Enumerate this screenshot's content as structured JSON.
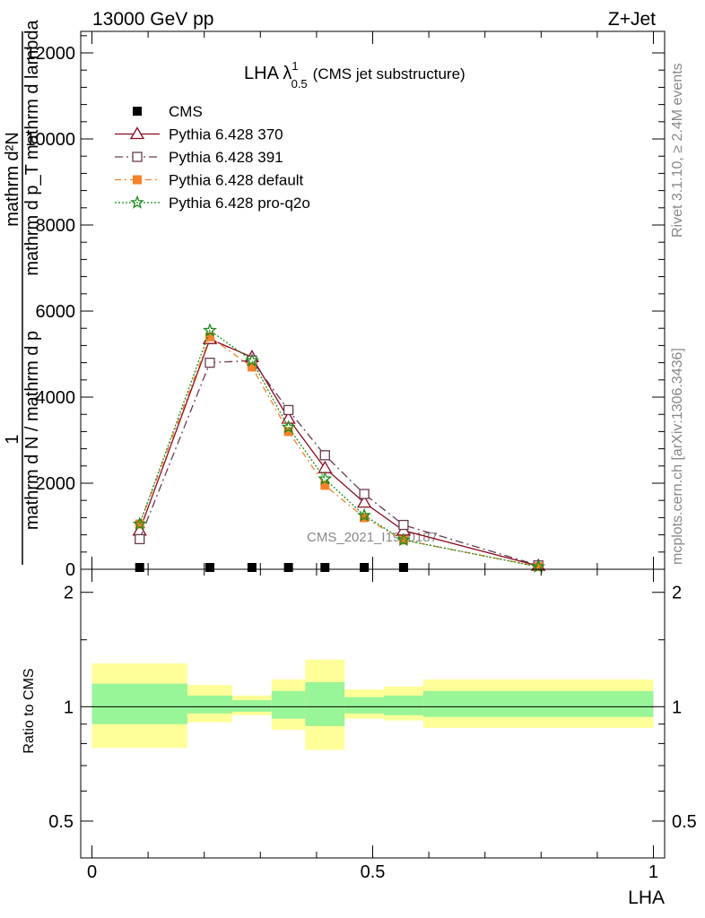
{
  "header": {
    "left": "13000 GeV pp",
    "right": "Z+Jet"
  },
  "side_labels": {
    "rivet": "Rivet 3.1.10, ≥ 2.4M events",
    "mcplots": "mcplots.cern.ch [arXiv:1306.3436]"
  },
  "watermark": "CMS_2021_I1920187",
  "chart_data": [
    {
      "type": "line",
      "title_main": "LHA λ",
      "title_sup": "1",
      "title_sub": "0.5",
      "title_note": "(CMS jet substructure)",
      "ylabel_lines": [
        "mathrm d²N",
        "1",
        "mathrm d N / mathrm d p",
        "mathrm d p_T mathrm d lambda"
      ],
      "ylabel_full": "1 / mathrm d N / mathrm d p_T · mathrm d²N / mathrm d p_T mathrm d lambda",
      "ylim": [
        0,
        12500
      ],
      "yticks": [
        0,
        2000,
        4000,
        6000,
        8000,
        10000,
        12000
      ],
      "ytick_labels": [
        "0",
        "2000",
        "4000",
        "6000",
        "8000",
        "10000",
        "12000"
      ],
      "xlim": [
        -0.02,
        1.02
      ],
      "x": [
        0.085,
        0.21,
        0.285,
        0.35,
        0.415,
        0.485,
        0.555,
        0.795
      ],
      "series": [
        {
          "name": "CMS",
          "marker": "square-filled",
          "color": "#000000",
          "values": [
            0,
            0,
            0,
            0,
            0,
            0,
            0,
            null
          ]
        },
        {
          "name": "Pythia 6.428 370",
          "marker": "triangle-open",
          "color": "#8b0a1e",
          "values": [
            900,
            5350,
            4930,
            3500,
            2350,
            1550,
            900,
            80
          ]
        },
        {
          "name": "Pythia 6.428 391",
          "marker": "square-open",
          "color": "#6b3a50",
          "values": [
            700,
            4800,
            4850,
            3700,
            2650,
            1750,
            1030,
            90
          ]
        },
        {
          "name": "Pythia 6.428 default",
          "marker": "square-filled",
          "color": "#f5822a",
          "values": [
            1050,
            5400,
            4700,
            3200,
            1950,
            1200,
            680,
            60
          ]
        },
        {
          "name": "Pythia 6.428 pro-q2o",
          "marker": "star-open",
          "color": "#1a8c1a",
          "values": [
            1050,
            5550,
            4850,
            3300,
            2100,
            1250,
            680,
            60
          ]
        }
      ]
    },
    {
      "type": "area",
      "ylabel": "Ratio to CMS",
      "xlabel": "LHA",
      "ylim": [
        0.4,
        2.3
      ],
      "yticks": [
        0.5,
        1,
        2
      ],
      "ytick_labels": [
        "0.5",
        "1",
        "2"
      ],
      "xticks": [
        0,
        0.5,
        1
      ],
      "xtick_labels": [
        "0",
        "0.5",
        "1"
      ],
      "reference_line": 1,
      "bins": [
        {
          "x0": 0.0,
          "x1": 0.17,
          "inner": [
            0.9,
            1.15
          ],
          "outer": [
            0.78,
            1.3
          ]
        },
        {
          "x0": 0.17,
          "x1": 0.25,
          "inner": [
            0.96,
            1.07
          ],
          "outer": [
            0.91,
            1.14
          ]
        },
        {
          "x0": 0.25,
          "x1": 0.32,
          "inner": [
            0.97,
            1.04
          ],
          "outer": [
            0.95,
            1.07
          ]
        },
        {
          "x0": 0.32,
          "x1": 0.38,
          "inner": [
            0.93,
            1.1
          ],
          "outer": [
            0.87,
            1.18
          ]
        },
        {
          "x0": 0.38,
          "x1": 0.45,
          "inner": [
            0.89,
            1.16
          ],
          "outer": [
            0.77,
            1.33
          ]
        },
        {
          "x0": 0.45,
          "x1": 0.52,
          "inner": [
            0.96,
            1.06
          ],
          "outer": [
            0.93,
            1.11
          ]
        },
        {
          "x0": 0.52,
          "x1": 0.59,
          "inner": [
            0.95,
            1.07
          ],
          "outer": [
            0.92,
            1.13
          ]
        },
        {
          "x0": 0.59,
          "x1": 1.0,
          "inner": [
            0.94,
            1.1
          ],
          "outer": [
            0.88,
            1.18
          ]
        }
      ],
      "inner_color": "#98f598",
      "outer_color": "#ffff99"
    }
  ]
}
